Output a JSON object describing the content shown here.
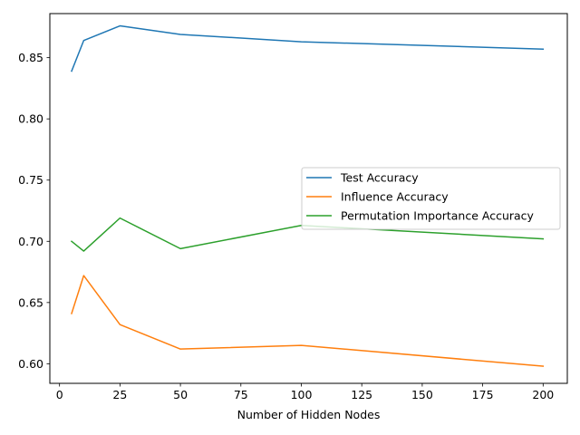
{
  "chart_data": {
    "type": "line",
    "title": "",
    "xlabel": "Number of Hidden Nodes",
    "ylabel": "",
    "x": [
      5,
      10,
      25,
      50,
      100,
      200
    ],
    "xlim": [
      -4,
      210
    ],
    "ylim": [
      0.584,
      0.886
    ],
    "xticks": [
      0,
      25,
      50,
      75,
      100,
      125,
      150,
      175,
      200
    ],
    "yticks": [
      0.6,
      0.65,
      0.7,
      0.75,
      0.8,
      0.85
    ],
    "xtick_labels": [
      "0",
      "25",
      "50",
      "75",
      "100",
      "125",
      "150",
      "175",
      "200"
    ],
    "ytick_labels": [
      "0.60",
      "0.65",
      "0.70",
      "0.75",
      "0.80",
      "0.85"
    ],
    "grid": false,
    "legend_position": "center-right",
    "series": [
      {
        "name": "Test Accuracy",
        "color": "#1f77b4",
        "values": [
          0.839,
          0.864,
          0.876,
          0.869,
          0.863,
          0.857
        ]
      },
      {
        "name": "Influence Accuracy",
        "color": "#ff7f0e",
        "values": [
          0.641,
          0.672,
          0.632,
          0.612,
          0.615,
          0.598
        ]
      },
      {
        "name": "Permutation Importance Accuracy",
        "color": "#2ca02c",
        "values": [
          0.7,
          0.692,
          0.719,
          0.694,
          0.713,
          0.702
        ]
      }
    ]
  }
}
